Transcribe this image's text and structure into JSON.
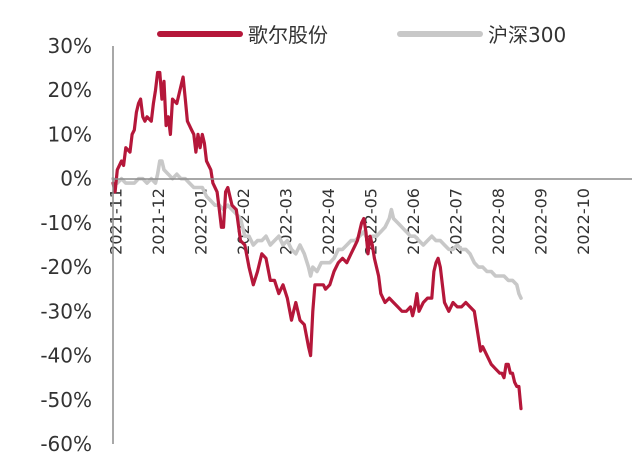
{
  "chart_data": {
    "type": "line",
    "title": "",
    "xlabel": "",
    "ylabel": "",
    "ylim": [
      -60,
      30
    ],
    "yticks": [
      "30%",
      "20%",
      "10%",
      "0%",
      "-10%",
      "-20%",
      "-30%",
      "-40%",
      "-50%",
      "-60%"
    ],
    "xticks": [
      "2021-11",
      "2021-12",
      "2022-01",
      "2022-02",
      "2022-03",
      "2022-04",
      "2022-05",
      "2022-06",
      "2022-07",
      "2022-08",
      "2022-09",
      "2022-10"
    ],
    "legend_position": "top",
    "grid": false,
    "series": [
      {
        "name": "歌尔股份",
        "color": "#b5173a",
        "points": [
          [
            0,
            -1
          ],
          [
            0.05,
            -3
          ],
          [
            0.1,
            2
          ],
          [
            0.2,
            4
          ],
          [
            0.25,
            3
          ],
          [
            0.3,
            7
          ],
          [
            0.4,
            6
          ],
          [
            0.45,
            10
          ],
          [
            0.5,
            11
          ],
          [
            0.55,
            15
          ],
          [
            0.6,
            17
          ],
          [
            0.65,
            18
          ],
          [
            0.7,
            14
          ],
          [
            0.75,
            13
          ],
          [
            0.8,
            14
          ],
          [
            0.9,
            13
          ],
          [
            0.95,
            17
          ],
          [
            1.0,
            20
          ],
          [
            1.05,
            24
          ],
          [
            1.1,
            24
          ],
          [
            1.15,
            18
          ],
          [
            1.2,
            22
          ],
          [
            1.25,
            12
          ],
          [
            1.3,
            14
          ],
          [
            1.35,
            10
          ],
          [
            1.4,
            18
          ],
          [
            1.5,
            17
          ],
          [
            1.6,
            21
          ],
          [
            1.65,
            23
          ],
          [
            1.7,
            18
          ],
          [
            1.75,
            13
          ],
          [
            1.8,
            12
          ],
          [
            1.85,
            11
          ],
          [
            1.9,
            10
          ],
          [
            1.95,
            6
          ],
          [
            2.0,
            10
          ],
          [
            2.05,
            7
          ],
          [
            2.1,
            10
          ],
          [
            2.15,
            8
          ],
          [
            2.2,
            4
          ],
          [
            2.3,
            2
          ],
          [
            2.35,
            -1
          ],
          [
            2.4,
            -2
          ],
          [
            2.45,
            -3
          ],
          [
            2.5,
            -7
          ],
          [
            2.55,
            -11
          ],
          [
            2.6,
            -11
          ],
          [
            2.65,
            -3
          ],
          [
            2.7,
            -2
          ],
          [
            2.8,
            -6
          ],
          [
            2.9,
            -7
          ],
          [
            3.0,
            -14
          ],
          [
            3.1,
            -15
          ],
          [
            3.2,
            -20
          ],
          [
            3.3,
            -24
          ],
          [
            3.4,
            -21
          ],
          [
            3.5,
            -17
          ],
          [
            3.6,
            -18
          ],
          [
            3.7,
            -23
          ],
          [
            3.8,
            -23
          ],
          [
            3.9,
            -26
          ],
          [
            4.0,
            -24
          ],
          [
            4.1,
            -27
          ],
          [
            4.2,
            -32
          ],
          [
            4.25,
            -30
          ],
          [
            4.3,
            -28
          ],
          [
            4.4,
            -32
          ],
          [
            4.5,
            -33
          ],
          [
            4.6,
            -38
          ],
          [
            4.65,
            -40
          ],
          [
            4.7,
            -30
          ],
          [
            4.75,
            -24
          ],
          [
            4.85,
            -24
          ],
          [
            4.95,
            -24
          ],
          [
            5.0,
            -25
          ],
          [
            5.1,
            -24
          ],
          [
            5.2,
            -21
          ],
          [
            5.3,
            -19
          ],
          [
            5.4,
            -18
          ],
          [
            5.5,
            -19
          ],
          [
            5.6,
            -17
          ],
          [
            5.7,
            -15
          ],
          [
            5.75,
            -14
          ],
          [
            5.8,
            -12
          ],
          [
            5.85,
            -10
          ],
          [
            5.9,
            -9
          ],
          [
            5.95,
            -12
          ],
          [
            6.0,
            -17
          ],
          [
            6.05,
            -13
          ],
          [
            6.1,
            -15
          ],
          [
            6.15,
            -18
          ],
          [
            6.2,
            -20
          ],
          [
            6.25,
            -22
          ],
          [
            6.3,
            -26
          ],
          [
            6.4,
            -28
          ],
          [
            6.5,
            -27
          ],
          [
            6.6,
            -28
          ],
          [
            6.7,
            -29
          ],
          [
            6.8,
            -30
          ],
          [
            6.9,
            -30
          ],
          [
            7.0,
            -29
          ],
          [
            7.05,
            -31
          ],
          [
            7.1,
            -29
          ],
          [
            7.15,
            -26
          ],
          [
            7.2,
            -30
          ],
          [
            7.3,
            -28
          ],
          [
            7.4,
            -27
          ],
          [
            7.5,
            -27
          ],
          [
            7.55,
            -21
          ],
          [
            7.6,
            -19
          ],
          [
            7.65,
            -18
          ],
          [
            7.7,
            -20
          ],
          [
            7.75,
            -24
          ],
          [
            7.8,
            -28
          ],
          [
            7.9,
            -30
          ],
          [
            8.0,
            -28
          ],
          [
            8.1,
            -29
          ],
          [
            8.2,
            -29
          ],
          [
            8.3,
            -28
          ],
          [
            8.4,
            -29
          ],
          [
            8.5,
            -30
          ],
          [
            8.6,
            -36
          ],
          [
            8.65,
            -39
          ],
          [
            8.7,
            -38
          ],
          [
            8.8,
            -40
          ],
          [
            8.9,
            -42
          ],
          [
            9.0,
            -43
          ],
          [
            9.1,
            -44
          ],
          [
            9.15,
            -44
          ],
          [
            9.2,
            -45
          ],
          [
            9.25,
            -42
          ],
          [
            9.3,
            -42
          ],
          [
            9.35,
            -44
          ],
          [
            9.4,
            -44
          ],
          [
            9.45,
            -46
          ],
          [
            9.5,
            -47
          ],
          [
            9.55,
            -47
          ],
          [
            9.6,
            -52
          ]
        ]
      },
      {
        "name": "沪深300",
        "color": "#c8c8c8",
        "points": [
          [
            0,
            0
          ],
          [
            0.1,
            -1
          ],
          [
            0.2,
            0
          ],
          [
            0.3,
            -1
          ],
          [
            0.4,
            -1
          ],
          [
            0.5,
            -1
          ],
          [
            0.6,
            0
          ],
          [
            0.7,
            0
          ],
          [
            0.8,
            -1
          ],
          [
            0.9,
            0
          ],
          [
            1.0,
            -1
          ],
          [
            1.05,
            1
          ],
          [
            1.1,
            4
          ],
          [
            1.15,
            4
          ],
          [
            1.2,
            2
          ],
          [
            1.3,
            1
          ],
          [
            1.4,
            0
          ],
          [
            1.5,
            1
          ],
          [
            1.6,
            0
          ],
          [
            1.7,
            0
          ],
          [
            1.8,
            -1
          ],
          [
            1.9,
            -2
          ],
          [
            2.0,
            -2
          ],
          [
            2.1,
            -2
          ],
          [
            2.2,
            -4
          ],
          [
            2.3,
            -5
          ],
          [
            2.4,
            -6
          ],
          [
            2.5,
            -6
          ],
          [
            2.6,
            -7
          ],
          [
            2.7,
            -6
          ],
          [
            2.8,
            -7
          ],
          [
            2.9,
            -8
          ],
          [
            3.0,
            -9
          ],
          [
            3.1,
            -13
          ],
          [
            3.2,
            -13
          ],
          [
            3.3,
            -15
          ],
          [
            3.4,
            -14
          ],
          [
            3.5,
            -14
          ],
          [
            3.6,
            -13
          ],
          [
            3.7,
            -15
          ],
          [
            3.8,
            -14
          ],
          [
            3.9,
            -13
          ],
          [
            4.0,
            -15
          ],
          [
            4.1,
            -14
          ],
          [
            4.2,
            -16
          ],
          [
            4.3,
            -17
          ],
          [
            4.4,
            -15
          ],
          [
            4.5,
            -17
          ],
          [
            4.6,
            -20
          ],
          [
            4.65,
            -22
          ],
          [
            4.7,
            -20
          ],
          [
            4.8,
            -21
          ],
          [
            4.9,
            -19
          ],
          [
            5.0,
            -19
          ],
          [
            5.1,
            -19
          ],
          [
            5.2,
            -18
          ],
          [
            5.3,
            -16
          ],
          [
            5.4,
            -16
          ],
          [
            5.5,
            -15
          ],
          [
            5.6,
            -14
          ],
          [
            5.7,
            -14
          ],
          [
            5.8,
            -13
          ],
          [
            5.9,
            -12
          ],
          [
            6.0,
            -14
          ],
          [
            6.1,
            -13
          ],
          [
            6.2,
            -13
          ],
          [
            6.3,
            -12
          ],
          [
            6.4,
            -11
          ],
          [
            6.5,
            -9
          ],
          [
            6.55,
            -7
          ],
          [
            6.6,
            -9
          ],
          [
            6.7,
            -10
          ],
          [
            6.8,
            -11
          ],
          [
            6.9,
            -12
          ],
          [
            7.0,
            -13
          ],
          [
            7.1,
            -13
          ],
          [
            7.2,
            -14
          ],
          [
            7.3,
            -15
          ],
          [
            7.4,
            -14
          ],
          [
            7.5,
            -13
          ],
          [
            7.6,
            -14
          ],
          [
            7.7,
            -14
          ],
          [
            7.8,
            -15
          ],
          [
            7.9,
            -16
          ],
          [
            8.0,
            -16
          ],
          [
            8.1,
            -15
          ],
          [
            8.2,
            -16
          ],
          [
            8.3,
            -16
          ],
          [
            8.4,
            -17
          ],
          [
            8.5,
            -19
          ],
          [
            8.6,
            -20
          ],
          [
            8.7,
            -20
          ],
          [
            8.8,
            -21
          ],
          [
            8.9,
            -21
          ],
          [
            9.0,
            -22
          ],
          [
            9.1,
            -22
          ],
          [
            9.2,
            -22
          ],
          [
            9.3,
            -23
          ],
          [
            9.4,
            -23
          ],
          [
            9.5,
            -24
          ],
          [
            9.55,
            -26
          ],
          [
            9.6,
            -27
          ]
        ]
      }
    ]
  }
}
